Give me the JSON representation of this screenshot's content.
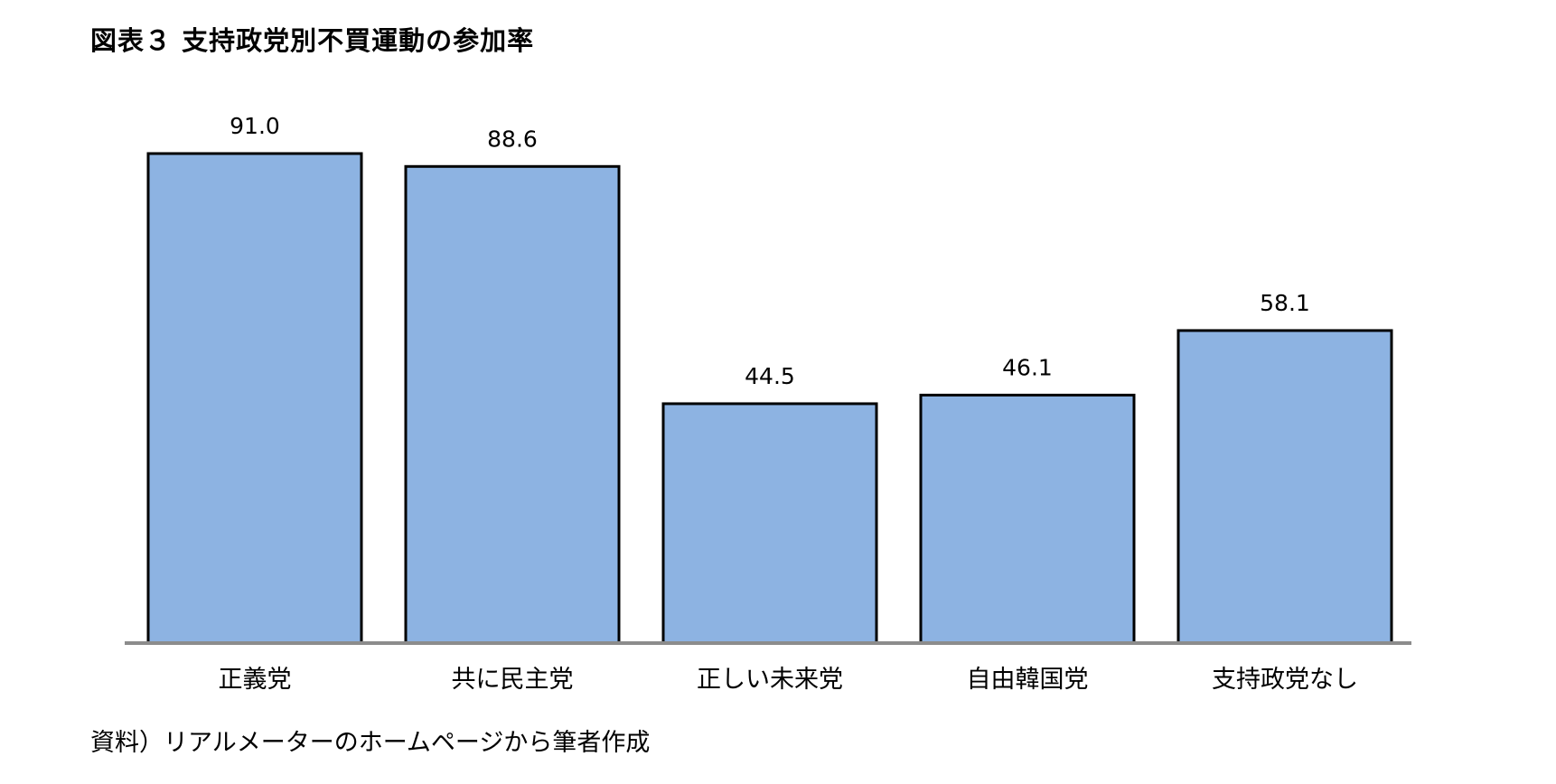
{
  "chart_title": "図表３ 支持政党別不買運動の参加率",
  "source_note": "資料）リアルメーターのホームページから筆者作成",
  "colors": {
    "bar_fill": "#8db3e2",
    "bar_stroke": "#000000",
    "baseline": "#8c8c8c"
  },
  "chart_data": {
    "type": "bar",
    "categories": [
      "正義党",
      "共に民主党",
      "正しい未来党",
      "自由韓国党",
      "支持政党なし"
    ],
    "values": [
      91.0,
      88.6,
      44.5,
      46.1,
      58.1
    ],
    "value_labels": [
      "91.0",
      "88.6",
      "44.5",
      "46.1",
      "58.1"
    ],
    "title": "図表３ 支持政党別不買運動の参加率",
    "xlabel": "",
    "ylabel": "",
    "ylim": [
      0,
      91
    ],
    "grid": false,
    "legend": "none"
  }
}
